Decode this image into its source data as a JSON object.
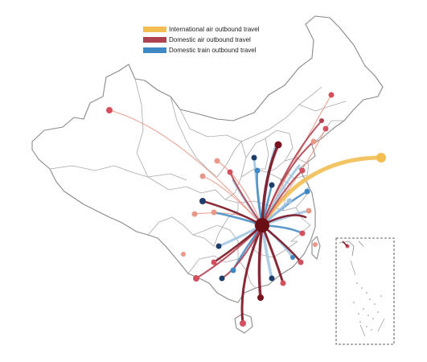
{
  "legend": {
    "items": [
      {
        "label": "International air outbound travel",
        "color": "#f2be52"
      },
      {
        "label": "Domestic air outbound travel",
        "color": "#b0414f"
      },
      {
        "label": "Domestic train outbound travel",
        "color": "#3e88c4"
      }
    ]
  },
  "colors": {
    "origin": "#6b0f15",
    "international": "#f2be52",
    "domestic_air": "#b0414f",
    "domestic_air_dark": "#7a1320",
    "domestic_air_light": "#e99787",
    "train": "#3e88c4",
    "train_dark": "#1f3d6b",
    "train_light": "#9fc3e0",
    "boundary": "#8a8a8a"
  },
  "map": {
    "inset": "South China Sea islands (dashed box)"
  }
}
